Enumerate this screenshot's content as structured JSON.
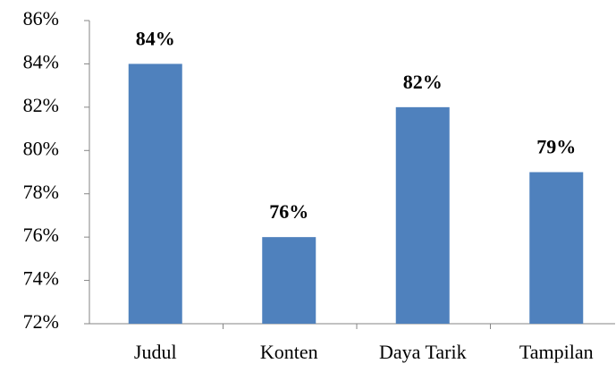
{
  "chart_data": {
    "type": "bar",
    "categories": [
      "Judul",
      "Konten",
      "Daya Tarik",
      "Tampilan"
    ],
    "values": [
      84,
      76,
      82,
      79
    ],
    "value_labels": [
      "84%",
      "76%",
      "82%",
      "79%"
    ],
    "color": "#4f81bd",
    "ylim": [
      72,
      86
    ],
    "yticks": [
      {
        "value": 72,
        "label": "72%"
      },
      {
        "value": 74,
        "label": "74%"
      },
      {
        "value": 76,
        "label": "76%"
      },
      {
        "value": 78,
        "label": "78%"
      },
      {
        "value": 80,
        "label": "80%"
      },
      {
        "value": 82,
        "label": "82%"
      },
      {
        "value": 84,
        "label": "84%"
      },
      {
        "value": 86,
        "label": "86%"
      }
    ],
    "grid": false
  }
}
